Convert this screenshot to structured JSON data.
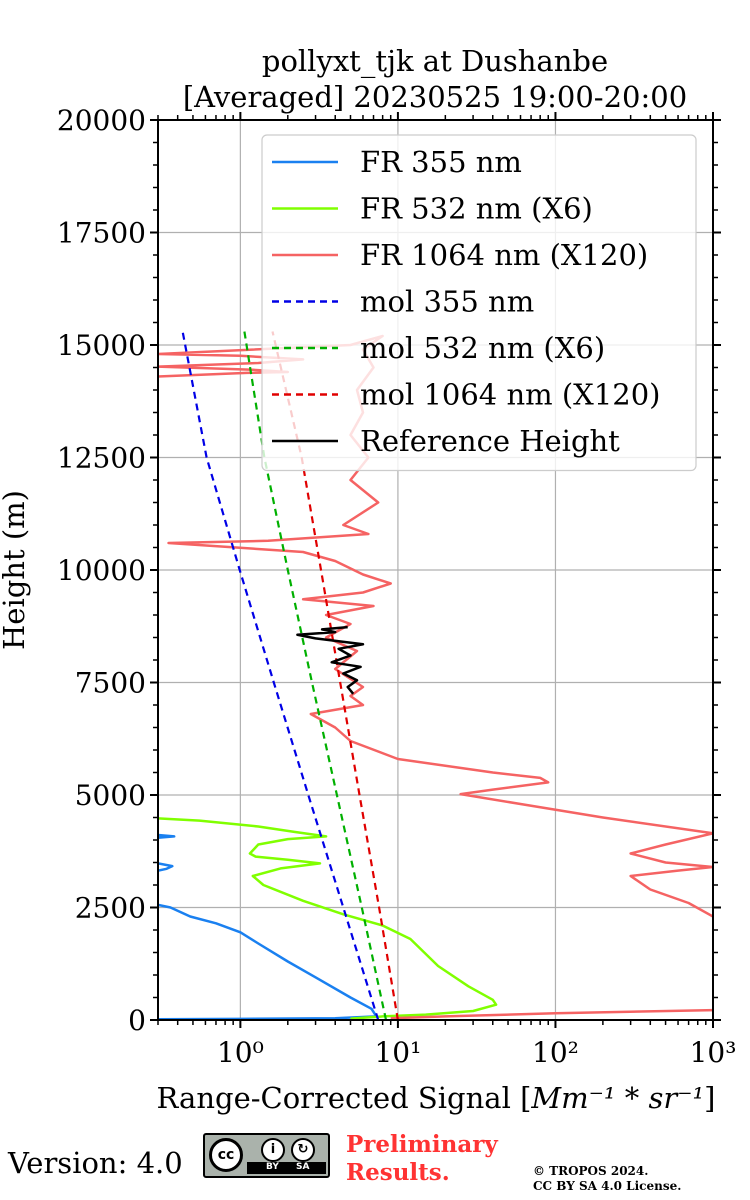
{
  "chart_data": {
    "type": "line",
    "title_line1": "pollyxt_tjk at Dushanbe",
    "title_line2": "[Averaged] 20230525 19:00-20:00",
    "xlabel_text": "Range-Corrected Signal [",
    "xlabel_math": "Mm⁻¹ * sr⁻¹",
    "xlabel_close": "]",
    "ylabel": "Height (m)",
    "xscale": "log",
    "xlim": [
      0.3,
      1000
    ],
    "ylim": [
      0,
      20000
    ],
    "x_ticks": [
      "10⁰",
      "10¹",
      "10²",
      "10³"
    ],
    "y_ticks": [
      "0",
      "2500",
      "5000",
      "7500",
      "10000",
      "12500",
      "15000",
      "17500",
      "20000"
    ],
    "grid": true,
    "legend_position": "top-right",
    "legend": [
      {
        "label": "FR 355 nm",
        "color": "#1a80f0",
        "dash": "solid"
      },
      {
        "label": "FR 532 nm (X6)",
        "color": "#80ff00",
        "dash": "solid"
      },
      {
        "label": "FR 1064 nm (X120)",
        "color": "#f56363",
        "dash": "solid"
      },
      {
        "label": "mol 355 nm",
        "color": "#0000e6",
        "dash": "dashed"
      },
      {
        "label": "mol 532 nm (X6)",
        "color": "#00b000",
        "dash": "dashed"
      },
      {
        "label": "mol 1064 nm (X120)",
        "color": "#e00000",
        "dash": "dashed"
      },
      {
        "label": "Reference Height",
        "color": "#000000",
        "dash": "solid"
      }
    ],
    "series": [
      {
        "key": "fr355",
        "color": "#1a80f0",
        "width": 2.5,
        "dash": "",
        "points": [
          [
            0.3,
            4050
          ],
          [
            0.38,
            4080
          ],
          [
            0.3,
            4110
          ],
          null,
          [
            0.3,
            3320
          ],
          [
            0.34,
            3360
          ],
          [
            0.37,
            3420
          ],
          [
            0.3,
            3480
          ],
          null,
          [
            0.3,
            2560
          ],
          [
            0.36,
            2500
          ],
          [
            0.48,
            2300
          ],
          [
            0.7,
            2150
          ],
          [
            1.0,
            1950
          ],
          [
            1.3,
            1700
          ],
          [
            2.0,
            1300
          ],
          [
            3.0,
            950
          ],
          [
            5.0,
            500
          ],
          [
            6.8,
            250
          ],
          [
            7.3,
            80
          ],
          [
            4.0,
            40
          ],
          [
            1.0,
            25
          ],
          [
            0.3,
            15
          ]
        ]
      },
      {
        "key": "fr532",
        "color": "#80ff00",
        "width": 2.5,
        "dash": "",
        "points": [
          [
            0.3,
            4480
          ],
          [
            0.55,
            4430
          ],
          [
            1.3,
            4300
          ],
          [
            2.2,
            4180
          ],
          [
            3.5,
            4080
          ],
          [
            2.0,
            4020
          ],
          [
            1.3,
            3900
          ],
          [
            1.15,
            3700
          ],
          [
            1.25,
            3630
          ],
          [
            2.0,
            3560
          ],
          [
            3.2,
            3480
          ],
          [
            1.8,
            3370
          ],
          [
            1.2,
            3200
          ],
          [
            1.4,
            3000
          ],
          [
            2.5,
            2650
          ],
          [
            4.5,
            2350
          ],
          [
            8.0,
            2100
          ],
          [
            12.0,
            1800
          ],
          [
            18.0,
            1200
          ],
          [
            28.0,
            750
          ],
          [
            40.0,
            450
          ],
          [
            42.0,
            340
          ],
          [
            30.0,
            200
          ],
          [
            15.0,
            120
          ],
          [
            8.0,
            80
          ],
          [
            5.0,
            30
          ]
        ]
      },
      {
        "key": "fr1064",
        "color": "#f56363",
        "width": 2.5,
        "dash": "",
        "points": [
          [
            0.3,
            14300
          ],
          [
            1.1,
            14380
          ],
          [
            2.0,
            14400
          ],
          [
            1.2,
            14450
          ],
          [
            0.3,
            14520
          ],
          [
            1.3,
            14600
          ],
          [
            2.5,
            14680
          ],
          [
            1.0,
            14760
          ],
          [
            0.3,
            14800
          ],
          [
            5.0,
            15000
          ],
          [
            8.0,
            15200
          ],
          [
            6.0,
            14900
          ],
          [
            7.0,
            14500
          ],
          [
            5.5,
            14000
          ],
          [
            6.0,
            13500
          ],
          [
            5.0,
            13000
          ],
          [
            6.5,
            12500
          ],
          [
            5.0,
            12000
          ],
          [
            7.5,
            11500
          ],
          [
            4.5,
            11000
          ],
          [
            6.5,
            10800
          ],
          [
            1.5,
            10650
          ],
          [
            0.35,
            10600
          ],
          [
            2.5,
            10400
          ],
          [
            4.0,
            10200
          ],
          [
            6.0,
            9900
          ],
          [
            9.0,
            9700
          ],
          [
            6.0,
            9500
          ],
          [
            2.5,
            9350
          ],
          [
            7.0,
            9200
          ],
          [
            3.5,
            9000
          ],
          [
            5.0,
            8800
          ],
          [
            3.5,
            8500
          ],
          [
            5.5,
            8200
          ],
          [
            4.0,
            7800
          ],
          [
            6.0,
            7400
          ],
          [
            5.0,
            7200
          ],
          [
            6.0,
            7000
          ],
          [
            2.8,
            6800
          ],
          [
            4.0,
            6500
          ],
          [
            5.0,
            6200
          ],
          [
            10.0,
            5800
          ],
          [
            40.0,
            5500
          ],
          [
            80.0,
            5380
          ],
          [
            90.0,
            5280
          ],
          [
            40.0,
            5120
          ],
          [
            25.0,
            5020
          ],
          [
            60.0,
            4800
          ],
          [
            200.0,
            4500
          ],
          [
            1000.0,
            4150
          ],
          [
            500.0,
            3900
          ],
          [
            300.0,
            3700
          ],
          [
            500.0,
            3500
          ],
          [
            1000.0,
            3400
          ],
          [
            600.0,
            3320
          ],
          [
            300.0,
            3200
          ],
          [
            400.0,
            2900
          ],
          [
            700.0,
            2600
          ],
          [
            1000.0,
            2300
          ],
          null,
          [
            1000.0,
            220
          ],
          [
            100.0,
            150
          ],
          [
            20.0,
            80
          ],
          [
            9.0,
            40
          ]
        ]
      },
      {
        "key": "mol355",
        "color": "#0000e6",
        "width": 2.2,
        "dash": "7,5",
        "points": [
          [
            7.5,
            0
          ],
          [
            4.5,
            2500
          ],
          [
            2.7,
            5000
          ],
          [
            1.63,
            7500
          ],
          [
            0.99,
            10000
          ],
          [
            0.61,
            12500
          ],
          [
            0.43,
            15300
          ]
        ]
      },
      {
        "key": "mol532",
        "color": "#00b000",
        "width": 2.2,
        "dash": "7,5",
        "points": [
          [
            8.4,
            0
          ],
          [
            5.9,
            2500
          ],
          [
            4.1,
            5000
          ],
          [
            2.85,
            7500
          ],
          [
            2.0,
            10000
          ],
          [
            1.42,
            12500
          ],
          [
            1.06,
            15300
          ]
        ]
      },
      {
        "key": "mol1064",
        "color": "#e00000",
        "width": 2.2,
        "dash": "7,5",
        "points": [
          [
            10.0,
            0
          ],
          [
            7.6,
            2500
          ],
          [
            5.7,
            5000
          ],
          [
            4.3,
            7500
          ],
          [
            3.25,
            10000
          ],
          [
            2.45,
            12500
          ],
          [
            1.6,
            15300
          ]
        ]
      },
      {
        "key": "refheight",
        "color": "#000000",
        "width": 2.5,
        "dash": "",
        "points": [
          [
            5.2,
            7250
          ],
          [
            4.8,
            7400
          ],
          [
            5.5,
            7550
          ],
          [
            4.5,
            7700
          ],
          [
            5.8,
            7850
          ],
          [
            3.8,
            7950
          ],
          [
            5.0,
            8100
          ],
          [
            4.2,
            8250
          ],
          [
            6.0,
            8350
          ],
          [
            3.0,
            8480
          ],
          [
            2.3,
            8560
          ],
          [
            4.0,
            8620
          ],
          [
            3.3,
            8680
          ],
          [
            4.8,
            8730
          ]
        ]
      }
    ]
  },
  "footer": {
    "version": "Version: 4.0",
    "license_badge": {
      "circle": "cc",
      "by": "BY",
      "sa": "SA"
    },
    "preliminary_line1": "Preliminary",
    "preliminary_line2": "Results.",
    "copyright_line1": "© TROPOS 2024.",
    "copyright_line2": "CC BY SA 4.0 License."
  }
}
